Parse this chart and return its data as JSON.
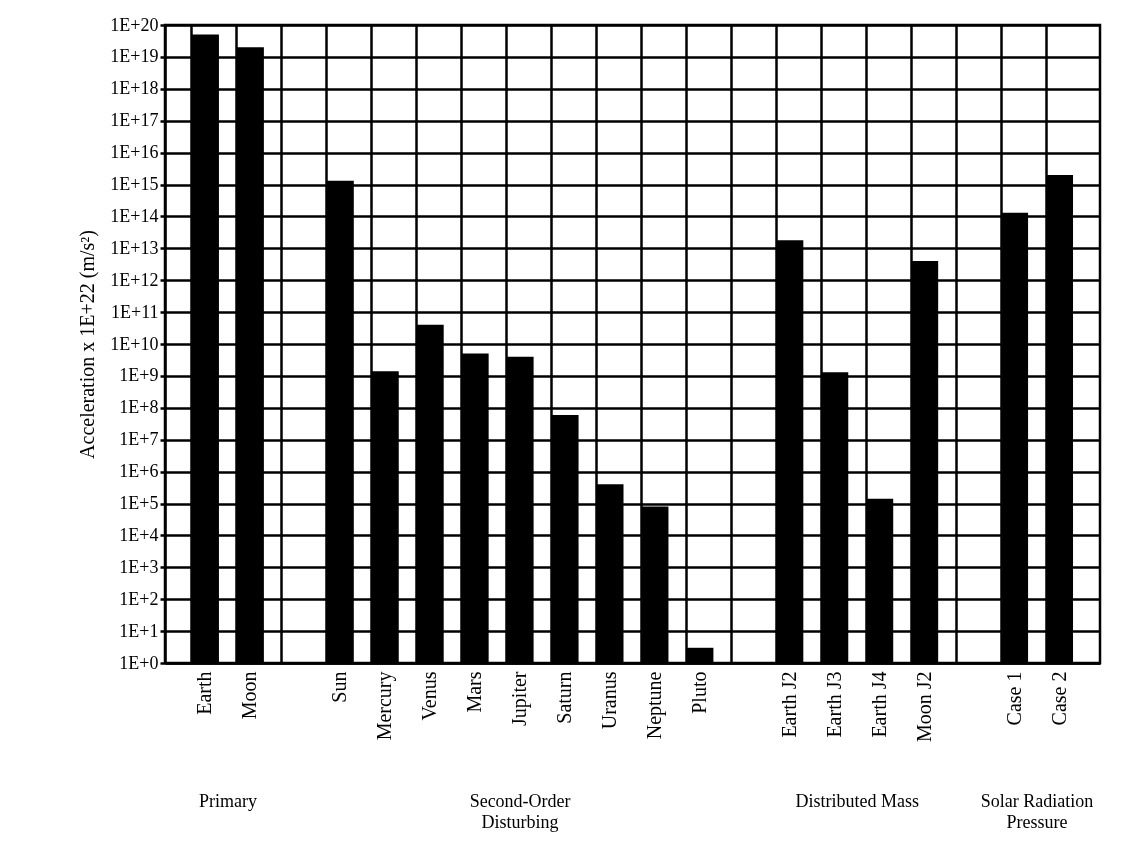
{
  "chart_data": {
    "type": "bar",
    "categories": [
      "Earth",
      "Moon",
      null,
      "Sun",
      "Mercury",
      "Venus",
      "Mars",
      "Jupiter",
      "Saturn",
      "Uranus",
      "Neptune",
      "Pluto",
      null,
      "Earth J2",
      "Earth J3",
      "Earth J4",
      "Moon J2",
      null,
      "Case 1",
      "Case 2"
    ],
    "values": [
      5e+19,
      2e+19,
      null,
      1300000000000000.0,
      1400000000.0,
      40000000000.0,
      5000000000.0,
      4000000000.0,
      60000000.0,
      400000.0,
      80000.0,
      3,
      null,
      18000000000000.0,
      1300000000.0,
      140000.0,
      4000000000000.0,
      null,
      130000000000000.0,
      2000000000000000.0
    ],
    "color": "#000000",
    "ylabel": "Acceleration x 1E+22 (m/s²)",
    "log": true,
    "ylim": [
      1,
      1e+20
    ],
    "yticks": [
      {
        "value": 1,
        "label": "1E+0"
      },
      {
        "value": 10,
        "label": "1E+1"
      },
      {
        "value": 100,
        "label": "1E+2"
      },
      {
        "value": 1000,
        "label": "1E+3"
      },
      {
        "value": 10000.0,
        "label": "1E+4"
      },
      {
        "value": 100000.0,
        "label": "1E+5"
      },
      {
        "value": 1000000.0,
        "label": "1E+6"
      },
      {
        "value": 10000000.0,
        "label": "1E+7"
      },
      {
        "value": 100000000.0,
        "label": "1E+8"
      },
      {
        "value": 1000000000.0,
        "label": "1E+9"
      },
      {
        "value": 10000000000.0,
        "label": "1E+10"
      },
      {
        "value": 100000000000.0,
        "label": "1E+11"
      },
      {
        "value": 1000000000000.0,
        "label": "1E+12"
      },
      {
        "value": 10000000000000.0,
        "label": "1E+13"
      },
      {
        "value": 100000000000000.0,
        "label": "1E+14"
      },
      {
        "value": 1000000000000000.0,
        "label": "1E+15"
      },
      {
        "value": 1e+16,
        "label": "1E+16"
      },
      {
        "value": 1e+17,
        "label": "1E+17"
      },
      {
        "value": 1e+18,
        "label": "1E+18"
      },
      {
        "value": 1e+19,
        "label": "1E+19"
      },
      {
        "value": 1e+20,
        "label": "1E+20"
      }
    ],
    "grid": true,
    "annotations": [
      "Primary",
      "Second-Order Disturbing",
      "Distributed Mass",
      "Solar Radiation Pressure"
    ]
  }
}
